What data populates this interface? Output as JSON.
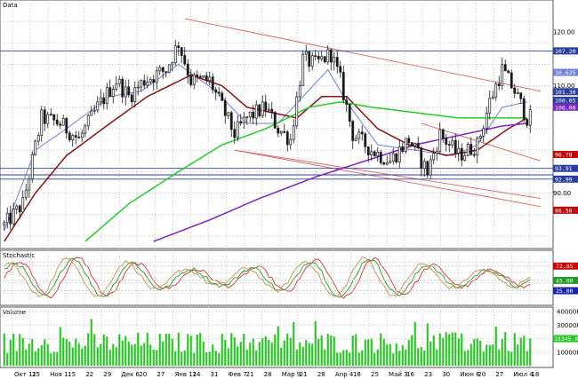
{
  "colors": {
    "background": "#ffffff",
    "grid": "#c8c8c8",
    "candle": "#1a1a1a",
    "ma_fast": "#6f7fe0",
    "ma_mid": "#8b1010",
    "ma_slow": "#22d022",
    "ma_long": "#7a22d0",
    "channel": "#e06060",
    "hline": "#2b3d9e",
    "stoch_k": "#e03030",
    "stoch_d": "#239a23",
    "stoch_k2": "#c09050",
    "volume": "#22c81e",
    "tag_bg": "#1a24a8",
    "tag_red": "#cc0000"
  },
  "chart_data": [
    {
      "type": "candlestick",
      "title": "Data",
      "ylim": [
        80,
        124
      ],
      "yticks": [
        {
          "value": 90.0,
          "label": "90.00"
        },
        {
          "value": 110.0,
          "label": "110.00"
        },
        {
          "value": 120.0,
          "label": "120.00"
        }
      ],
      "xticks": [
        "Окт 11",
        "25",
        "Ноя 1",
        "15",
        "22",
        "29",
        "Дек 6",
        "20",
        "27",
        "Янв 11",
        "24",
        "31",
        "Фев 7",
        "21",
        "28",
        "Мар 9",
        "21",
        "28",
        "Апр 4",
        "18",
        "25",
        "Май 3",
        "16",
        "23",
        "30",
        "Июн 6",
        "20",
        "27",
        "Июл 4",
        "18"
      ],
      "n_bars": 170,
      "anchors": [
        [
          0,
          84
        ],
        [
          6,
          88
        ],
        [
          12,
          104
        ],
        [
          18,
          103
        ],
        [
          24,
          100
        ],
        [
          30,
          106
        ],
        [
          36,
          111
        ],
        [
          40,
          108
        ],
        [
          45,
          111
        ],
        [
          52,
          113
        ],
        [
          56,
          118
        ],
        [
          60,
          111
        ],
        [
          66,
          111
        ],
        [
          70,
          106
        ],
        [
          74,
          101
        ],
        [
          78,
          104
        ],
        [
          84,
          106
        ],
        [
          88,
          102
        ],
        [
          92,
          100
        ],
        [
          96,
          115
        ],
        [
          100,
          114
        ],
        [
          105,
          116
        ],
        [
          108,
          111
        ],
        [
          112,
          101
        ],
        [
          118,
          98
        ],
        [
          124,
          96
        ],
        [
          130,
          100
        ],
        [
          136,
          94
        ],
        [
          140,
          101
        ],
        [
          146,
          97
        ],
        [
          152,
          99
        ],
        [
          156,
          107
        ],
        [
          160,
          113
        ],
        [
          164,
          109
        ],
        [
          168,
          104
        ]
      ],
      "moving_averages": [
        {
          "name": "fast",
          "color_key": "ma_fast",
          "anchors": [
            [
              0,
              83
            ],
            [
              10,
              98
            ],
            [
              20,
              102
            ],
            [
              34,
              108
            ],
            [
              44,
              109
            ],
            [
              56,
              114
            ],
            [
              68,
              109
            ],
            [
              78,
              103
            ],
            [
              88,
              103
            ],
            [
              96,
              108
            ],
            [
              104,
              113
            ],
            [
              110,
              107
            ],
            [
              120,
              99
            ],
            [
              132,
              98
            ],
            [
              144,
              97
            ],
            [
              152,
              99
            ],
            [
              160,
              106
            ],
            [
              168,
              107
            ]
          ]
        },
        {
          "name": "mid",
          "color_key": "ma_mid",
          "anchors": [
            [
              0,
              81
            ],
            [
              10,
              90
            ],
            [
              20,
              97
            ],
            [
              34,
              103
            ],
            [
              46,
              108
            ],
            [
              60,
              112
            ],
            [
              70,
              110
            ],
            [
              78,
              106
            ],
            [
              86,
              105
            ],
            [
              94,
              104
            ],
            [
              102,
              108
            ],
            [
              110,
              108
            ],
            [
              120,
              102
            ],
            [
              130,
              99
            ],
            [
              142,
              97
            ],
            [
              152,
              98
            ],
            [
              162,
              102
            ],
            [
              168,
              104
            ]
          ]
        },
        {
          "name": "slow",
          "color_key": "ma_slow",
          "anchors": [
            [
              26,
              81
            ],
            [
              40,
              88
            ],
            [
              56,
              94
            ],
            [
              70,
              99
            ],
            [
              84,
              102
            ],
            [
              98,
              106
            ],
            [
              108,
              107
            ],
            [
              118,
              106
            ],
            [
              132,
              105
            ],
            [
              146,
              104
            ],
            [
              158,
              104
            ],
            [
              168,
              104
            ]
          ]
        },
        {
          "name": "long",
          "color_key": "ma_long",
          "anchors": [
            [
              48,
              81
            ],
            [
              66,
              85
            ],
            [
              82,
              89
            ],
            [
              100,
              93
            ],
            [
              116,
              96
            ],
            [
              132,
              99
            ],
            [
              148,
              101
            ],
            [
              160,
              102.5
            ],
            [
              168,
              103
            ]
          ]
        }
      ],
      "channel_lines": [
        {
          "x": [
            58,
            170
          ],
          "y": [
            122.5,
            109
          ]
        },
        {
          "x": [
            74,
            170
          ],
          "y": [
            98,
            89
          ]
        },
        {
          "x": [
            74,
            170
          ],
          "y": [
            98,
            87.5
          ]
        },
        {
          "x": [
            134,
            170
          ],
          "y": [
            103,
            96
          ]
        }
      ],
      "hlines": [
        {
          "value": 116.5,
          "label": "107.20",
          "color_key": "hline"
        },
        {
          "value": 94.6,
          "label": "93.91",
          "color_key": "hline"
        },
        {
          "value": 93.4,
          "label": "",
          "color_key": "hline"
        },
        {
          "value": 92.6,
          "label": "92.99",
          "color_key": "hline"
        }
      ],
      "price_tags": [
        {
          "value": 112.5,
          "label": "10.635",
          "color_key": "ma_fast"
        },
        {
          "value": 108.9,
          "label": "101.30",
          "color_key": "hline"
        },
        {
          "value": 107.3,
          "label": "100.05",
          "color_key": "hline"
        },
        {
          "value": 106.0,
          "label": "106.08",
          "color_key": "ma_long"
        },
        {
          "value": 97.2,
          "label": "96.78",
          "color_key": "tag_red"
        },
        {
          "value": 86.8,
          "label": "86.58",
          "color_key": "tag_red"
        }
      ]
    },
    {
      "type": "line",
      "title": "Stochastic",
      "ylim": [
        0,
        100
      ],
      "levels": [
        {
          "value": 72.85,
          "label": "72.85",
          "color_key": "tag_red"
        },
        {
          "value": 45.0,
          "label": "45.00",
          "color_key": "stoch_d"
        },
        {
          "value": 25.0,
          "label": "25.00",
          "color_key": "tag_bg"
        }
      ],
      "series": [
        {
          "color_key": "stoch_k"
        },
        {
          "color_key": "stoch_d"
        },
        {
          "color_key": "stoch_k2"
        }
      ]
    },
    {
      "type": "bar",
      "title": "Volume",
      "ylim": [
        0,
        42000
      ],
      "yticks": [
        {
          "value": 40000,
          "label": "40000K"
        },
        {
          "value": 30000,
          "label": "30000K"
        },
        {
          "value": 20000,
          "label": "20000K"
        },
        {
          "value": 10000,
          "label": "10000K"
        }
      ],
      "last_tag": {
        "value": 20000,
        "label": "19345.00"
      }
    }
  ]
}
